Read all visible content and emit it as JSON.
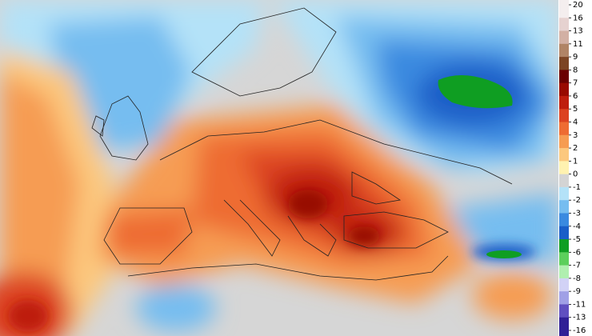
{
  "colorbar": {
    "ticks": [
      20,
      16,
      13,
      11,
      9,
      8,
      7,
      6,
      5,
      4,
      3,
      2,
      1,
      0,
      -1,
      -2,
      -3,
      -4,
      -5,
      -6,
      -7,
      -8,
      -9,
      -11,
      -13,
      -16
    ],
    "colors": [
      "#f4eeee",
      "#e6d2d0",
      "#d2b0a4",
      "#b08466",
      "#7c4524",
      "#6a0000",
      "#980a00",
      "#be1e0e",
      "#dc4220",
      "#ee6c32",
      "#f69c52",
      "#fcc87e",
      "#fff2b0",
      "#d4d4d4",
      "#b4e2f8",
      "#76bdf0",
      "#3a8ae0",
      "#1a5ec8",
      "#0f9e22",
      "#5ccf5c",
      "#b0efb0",
      "#d2d2f6",
      "#a0a0e6",
      "#6050c0",
      "#302096"
    ]
  }
}
